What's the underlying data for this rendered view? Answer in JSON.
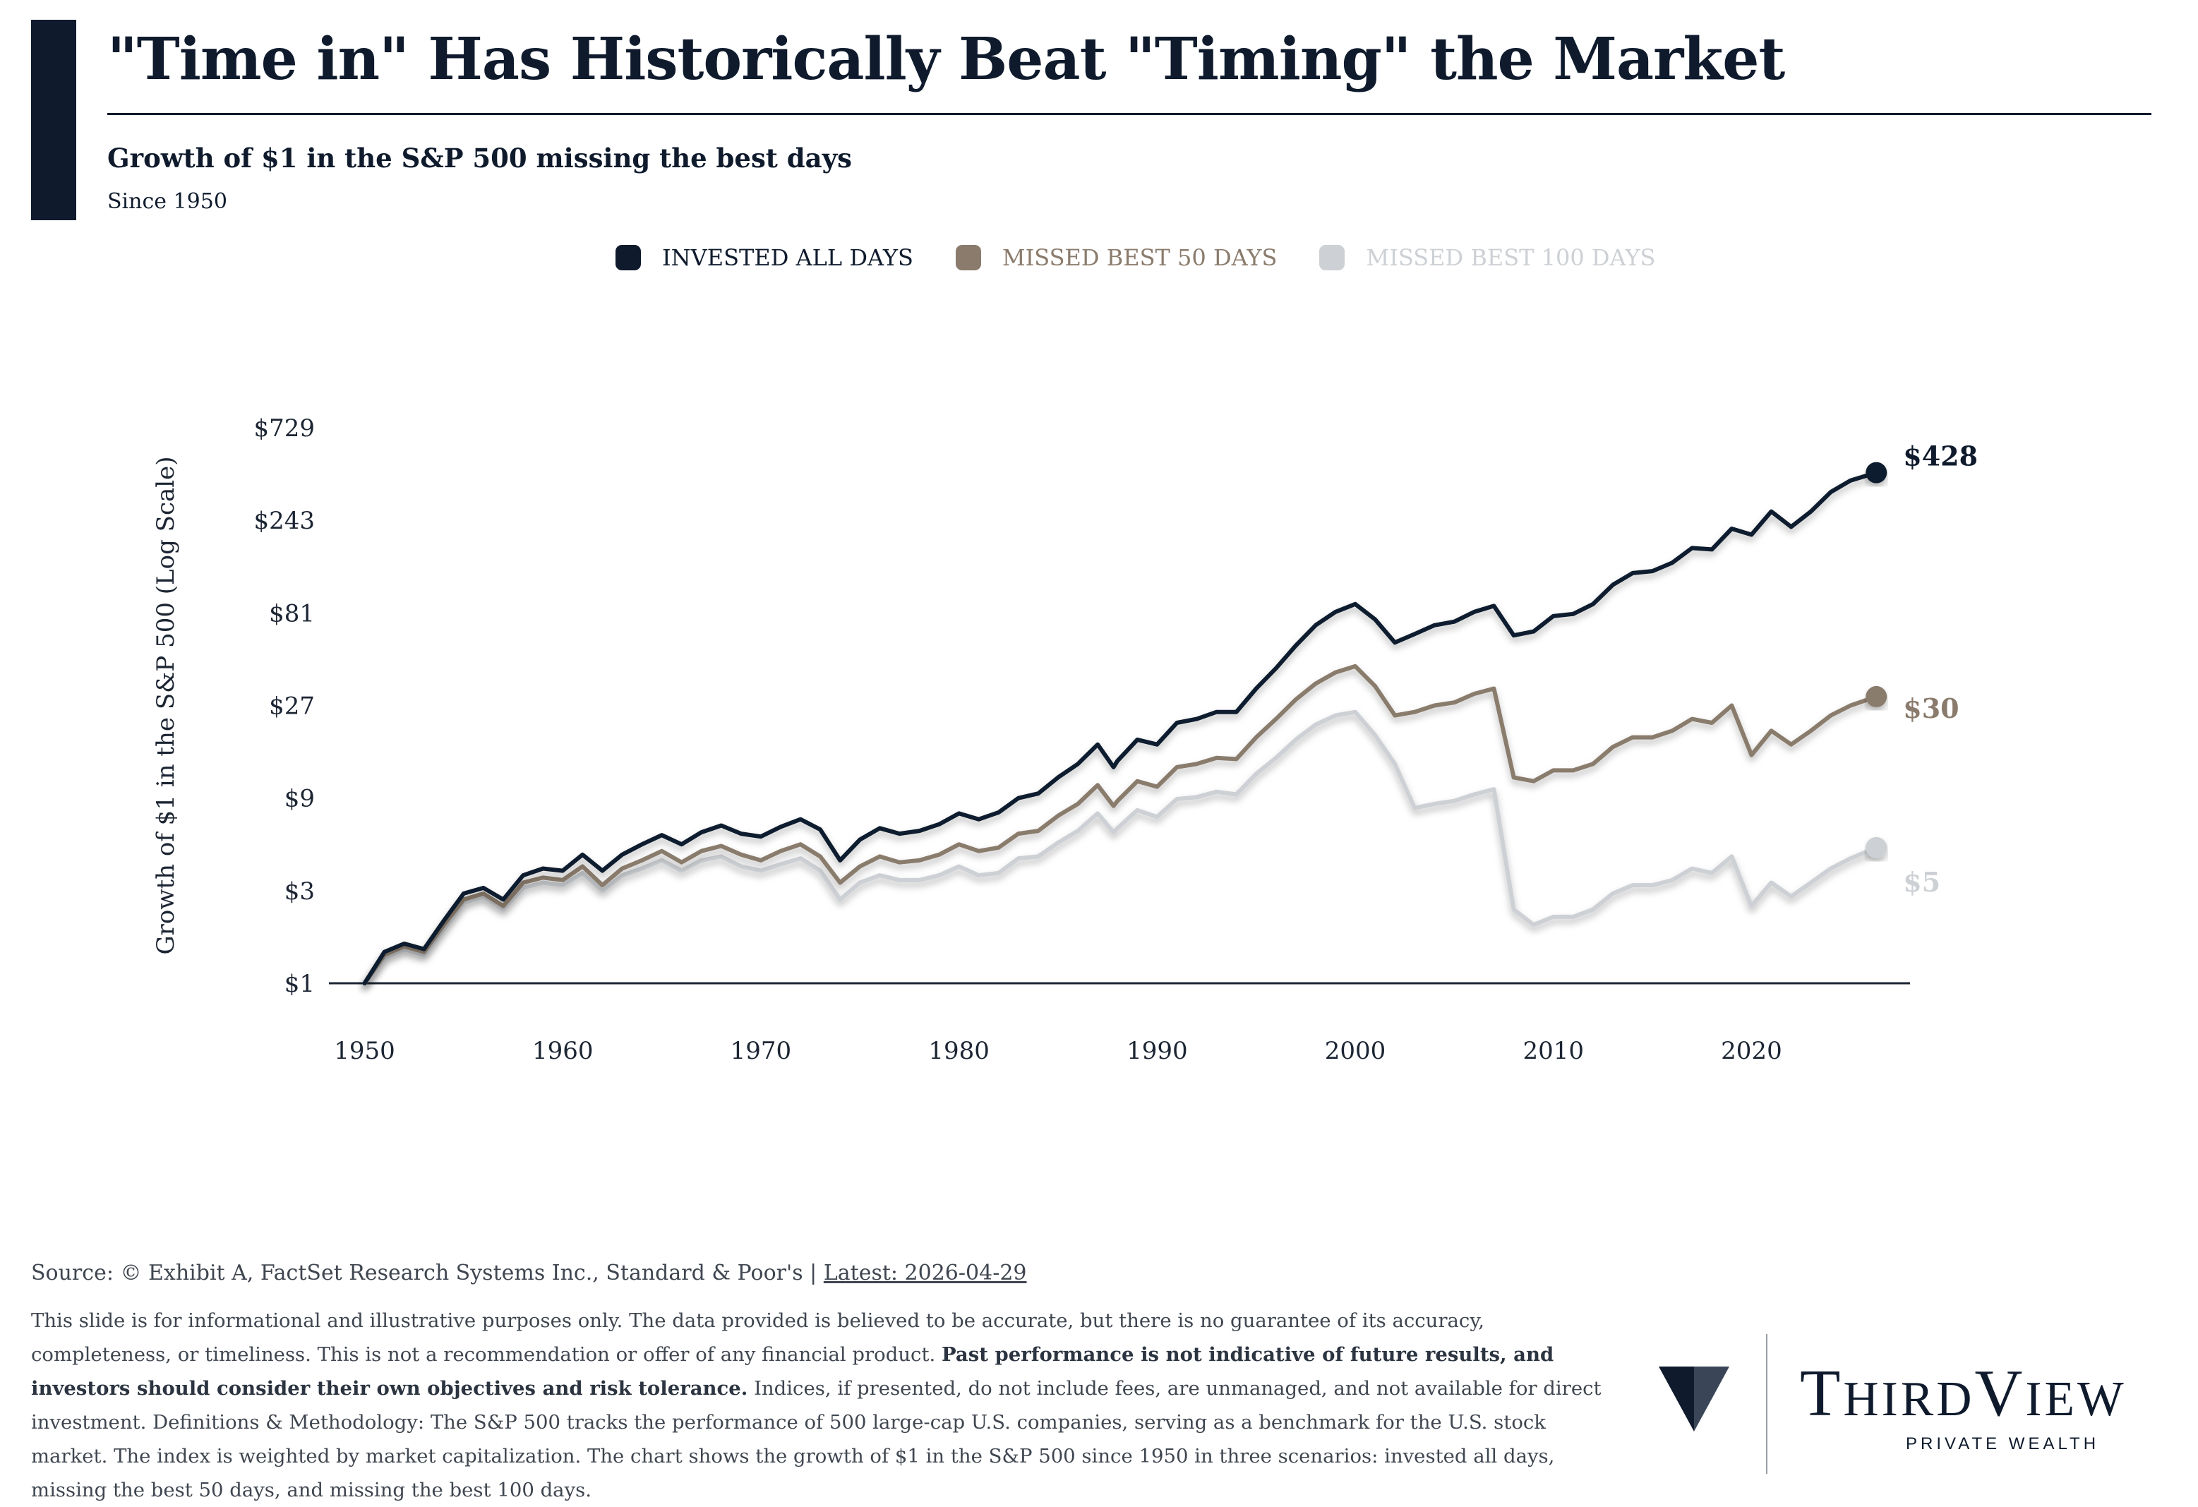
{
  "header": {
    "title": "\"Time in\" Has Historically Beat \"Timing\" the Market",
    "subtitle": "Growth of $1 in the S&P 500 missing the best days",
    "since": "Since 1950"
  },
  "colors": {
    "navy": "#0f1b2d",
    "taupe": "#8a7b6c",
    "light_gray": "#cdd0d4",
    "axis_text": "#1c2533"
  },
  "chart_data": {
    "type": "line",
    "title": "Growth of $1 in the S&P 500 missing the best days",
    "xlabel": "",
    "ylabel": "Growth of $1 in the S&P 500 (Log Scale)",
    "y_scale": "log",
    "ylim": [
      1,
      729
    ],
    "xlim": [
      1948.2,
      2028
    ],
    "y_ticks": [
      {
        "value": 1,
        "label": "$1"
      },
      {
        "value": 3,
        "label": "$3"
      },
      {
        "value": 9,
        "label": "$9"
      },
      {
        "value": 27,
        "label": "$27"
      },
      {
        "value": 81,
        "label": "$81"
      },
      {
        "value": 243,
        "label": "$243"
      },
      {
        "value": 729,
        "label": "$729"
      }
    ],
    "x_ticks": [
      {
        "value": 1950,
        "label": "1950"
      },
      {
        "value": 1960,
        "label": "1960"
      },
      {
        "value": 1970,
        "label": "1970"
      },
      {
        "value": 1980,
        "label": "1980"
      },
      {
        "value": 1990,
        "label": "1990"
      },
      {
        "value": 2000,
        "label": "2000"
      },
      {
        "value": 2010,
        "label": "2010"
      },
      {
        "value": 2020,
        "label": "2020"
      }
    ],
    "series": [
      {
        "name": "INVESTED ALL DAYS",
        "color": "#0f1b2d",
        "end_label": "$428",
        "points": [
          [
            1950,
            1
          ],
          [
            1951,
            1.45
          ],
          [
            1952,
            1.6
          ],
          [
            1953,
            1.5
          ],
          [
            1954,
            2.1
          ],
          [
            1955,
            2.9
          ],
          [
            1956,
            3.1
          ],
          [
            1957,
            2.7
          ],
          [
            1958,
            3.6
          ],
          [
            1959,
            3.9
          ],
          [
            1960,
            3.8
          ],
          [
            1961,
            4.6
          ],
          [
            1962,
            3.8
          ],
          [
            1963,
            4.6
          ],
          [
            1964,
            5.2
          ],
          [
            1965,
            5.8
          ],
          [
            1966,
            5.2
          ],
          [
            1967,
            6.0
          ],
          [
            1968,
            6.5
          ],
          [
            1969,
            5.9
          ],
          [
            1970,
            5.7
          ],
          [
            1971,
            6.4
          ],
          [
            1972,
            7.0
          ],
          [
            1973,
            6.2
          ],
          [
            1974,
            4.3
          ],
          [
            1975,
            5.5
          ],
          [
            1976,
            6.3
          ],
          [
            1977,
            5.9
          ],
          [
            1978,
            6.1
          ],
          [
            1979,
            6.6
          ],
          [
            1980,
            7.5
          ],
          [
            1981,
            7.0
          ],
          [
            1982,
            7.6
          ],
          [
            1983,
            9.0
          ],
          [
            1984,
            9.5
          ],
          [
            1985,
            11.5
          ],
          [
            1986,
            13.5
          ],
          [
            1987,
            17.0
          ],
          [
            1987.8,
            13.0
          ],
          [
            1988,
            14.0
          ],
          [
            1989,
            18.0
          ],
          [
            1990,
            17.0
          ],
          [
            1991,
            22.0
          ],
          [
            1992,
            23.0
          ],
          [
            1993,
            25.0
          ],
          [
            1994,
            25.0
          ],
          [
            1995,
            33.0
          ],
          [
            1996,
            42.0
          ],
          [
            1997,
            55.0
          ],
          [
            1998,
            70.0
          ],
          [
            1999,
            82.0
          ],
          [
            2000,
            90.0
          ],
          [
            2001,
            75.0
          ],
          [
            2002,
            57.0
          ],
          [
            2003,
            63.0
          ],
          [
            2004,
            70.0
          ],
          [
            2005,
            73.0
          ],
          [
            2006,
            82.0
          ],
          [
            2007,
            88.0
          ],
          [
            2008,
            62.0
          ],
          [
            2009,
            65.0
          ],
          [
            2010,
            78.0
          ],
          [
            2011,
            80.0
          ],
          [
            2012,
            90.0
          ],
          [
            2013,
            113.0
          ],
          [
            2014,
            130.0
          ],
          [
            2015,
            133.0
          ],
          [
            2016,
            147.0
          ],
          [
            2017,
            175.0
          ],
          [
            2018,
            172.0
          ],
          [
            2019,
            220.0
          ],
          [
            2020,
            205.0
          ],
          [
            2021,
            270.0
          ],
          [
            2022,
            225.0
          ],
          [
            2023,
            270.0
          ],
          [
            2024,
            340.0
          ],
          [
            2025,
            390.0
          ],
          [
            2026.3,
            428.0
          ]
        ]
      },
      {
        "name": "MISSED BEST 50 DAYS",
        "color": "#8a7b6c",
        "end_label": "$30",
        "points": [
          [
            1950,
            1
          ],
          [
            1951,
            1.4
          ],
          [
            1952,
            1.55
          ],
          [
            1953,
            1.45
          ],
          [
            1954,
            2.0
          ],
          [
            1955,
            2.7
          ],
          [
            1956,
            2.9
          ],
          [
            1957,
            2.5
          ],
          [
            1958,
            3.3
          ],
          [
            1959,
            3.5
          ],
          [
            1960,
            3.4
          ],
          [
            1961,
            4.0
          ],
          [
            1962,
            3.2
          ],
          [
            1963,
            3.9
          ],
          [
            1964,
            4.3
          ],
          [
            1965,
            4.8
          ],
          [
            1966,
            4.2
          ],
          [
            1967,
            4.8
          ],
          [
            1968,
            5.1
          ],
          [
            1969,
            4.6
          ],
          [
            1970,
            4.3
          ],
          [
            1971,
            4.8
          ],
          [
            1972,
            5.2
          ],
          [
            1973,
            4.5
          ],
          [
            1974,
            3.3
          ],
          [
            1975,
            4.0
          ],
          [
            1976,
            4.5
          ],
          [
            1977,
            4.2
          ],
          [
            1978,
            4.3
          ],
          [
            1979,
            4.6
          ],
          [
            1980,
            5.2
          ],
          [
            1981,
            4.8
          ],
          [
            1982,
            5.0
          ],
          [
            1983,
            5.9
          ],
          [
            1984,
            6.1
          ],
          [
            1985,
            7.3
          ],
          [
            1986,
            8.4
          ],
          [
            1987,
            10.5
          ],
          [
            1987.8,
            8.2
          ],
          [
            1988,
            8.7
          ],
          [
            1989,
            11.0
          ],
          [
            1990,
            10.3
          ],
          [
            1991,
            13.0
          ],
          [
            1992,
            13.5
          ],
          [
            1993,
            14.5
          ],
          [
            1994,
            14.3
          ],
          [
            1995,
            18.5
          ],
          [
            1996,
            23.0
          ],
          [
            1997,
            29.0
          ],
          [
            1998,
            35.0
          ],
          [
            1999,
            40.0
          ],
          [
            2000,
            43.0
          ],
          [
            2001,
            34.0
          ],
          [
            2002,
            24.0
          ],
          [
            2003,
            25.0
          ],
          [
            2004,
            27.0
          ],
          [
            2005,
            28.0
          ],
          [
            2006,
            31.0
          ],
          [
            2007,
            33.0
          ],
          [
            2008,
            11.5
          ],
          [
            2009,
            11.0
          ],
          [
            2010,
            12.5
          ],
          [
            2011,
            12.5
          ],
          [
            2012,
            13.5
          ],
          [
            2013,
            16.5
          ],
          [
            2014,
            18.5
          ],
          [
            2015,
            18.5
          ],
          [
            2016,
            20.0
          ],
          [
            2017,
            23.0
          ],
          [
            2018,
            22.0
          ],
          [
            2019,
            27.0
          ],
          [
            2020,
            15.0
          ],
          [
            2021,
            20.0
          ],
          [
            2022,
            17.0
          ],
          [
            2023,
            20.0
          ],
          [
            2024,
            24.0
          ],
          [
            2025,
            27.0
          ],
          [
            2026.3,
            30.0
          ]
        ]
      },
      {
        "name": "MISSED BEST 100 DAYS",
        "color": "#cdd0d4",
        "end_label": "$5",
        "points": [
          [
            1950,
            1
          ],
          [
            1951,
            1.35
          ],
          [
            1952,
            1.5
          ],
          [
            1953,
            1.4
          ],
          [
            1954,
            1.9
          ],
          [
            1955,
            2.6
          ],
          [
            1956,
            2.8
          ],
          [
            1957,
            2.4
          ],
          [
            1958,
            3.1
          ],
          [
            1959,
            3.3
          ],
          [
            1960,
            3.2
          ],
          [
            1961,
            3.7
          ],
          [
            1962,
            3.0
          ],
          [
            1963,
            3.6
          ],
          [
            1964,
            3.9
          ],
          [
            1965,
            4.3
          ],
          [
            1966,
            3.8
          ],
          [
            1967,
            4.3
          ],
          [
            1968,
            4.5
          ],
          [
            1969,
            4.0
          ],
          [
            1970,
            3.8
          ],
          [
            1971,
            4.1
          ],
          [
            1972,
            4.4
          ],
          [
            1973,
            3.8
          ],
          [
            1974,
            2.7
          ],
          [
            1975,
            3.3
          ],
          [
            1976,
            3.6
          ],
          [
            1977,
            3.4
          ],
          [
            1978,
            3.4
          ],
          [
            1979,
            3.6
          ],
          [
            1980,
            4.0
          ],
          [
            1981,
            3.6
          ],
          [
            1982,
            3.7
          ],
          [
            1983,
            4.4
          ],
          [
            1984,
            4.5
          ],
          [
            1985,
            5.3
          ],
          [
            1986,
            6.1
          ],
          [
            1987,
            7.5
          ],
          [
            1987.8,
            6.0
          ],
          [
            1988,
            6.3
          ],
          [
            1989,
            7.8
          ],
          [
            1990,
            7.2
          ],
          [
            1991,
            8.9
          ],
          [
            1992,
            9.1
          ],
          [
            1993,
            9.7
          ],
          [
            1994,
            9.4
          ],
          [
            1995,
            12.0
          ],
          [
            1996,
            14.5
          ],
          [
            1997,
            18.0
          ],
          [
            1998,
            21.5
          ],
          [
            1999,
            24.0
          ],
          [
            2000,
            25.0
          ],
          [
            2001,
            19.0
          ],
          [
            2002,
            13.5
          ],
          [
            2003,
            8.0
          ],
          [
            2004,
            8.4
          ],
          [
            2005,
            8.7
          ],
          [
            2006,
            9.4
          ],
          [
            2007,
            10.0
          ],
          [
            2008,
            2.4
          ],
          [
            2009,
            2.0
          ],
          [
            2010,
            2.2
          ],
          [
            2011,
            2.2
          ],
          [
            2012,
            2.4
          ],
          [
            2013,
            2.9
          ],
          [
            2014,
            3.2
          ],
          [
            2015,
            3.2
          ],
          [
            2016,
            3.4
          ],
          [
            2017,
            3.9
          ],
          [
            2018,
            3.7
          ],
          [
            2019,
            4.5
          ],
          [
            2020,
            2.5
          ],
          [
            2021,
            3.3
          ],
          [
            2022,
            2.8
          ],
          [
            2023,
            3.3
          ],
          [
            2024,
            3.9
          ],
          [
            2025,
            4.4
          ],
          [
            2026.3,
            5.0
          ]
        ]
      }
    ]
  },
  "footer": {
    "source_prefix": "Source: © Exhibit A, FactSet Research Systems Inc., Standard & Poor's | ",
    "latest": "Latest: 2026-04-29",
    "disclaimer_1": "This slide is for informational and illustrative purposes only. The data provided is believed to be accurate, but there is no guarantee of its accuracy, completeness, or timeliness. This is not a recommendation or offer of any financial product. ",
    "disclaimer_bold": "Past performance is not indicative of future results, and investors should consider their own objectives and risk tolerance.",
    "disclaimer_2": " Indices, if presented, do not include fees, are unmanaged, and not available for direct investment. Definitions & Methodology: The S&P 500 tracks the performance of 500 large-cap U.S. companies, serving as a benchmark for the U.S. stock market. The index is weighted by market capitalization. The chart shows the growth of $1 in the S&P 500 since 1950 in three scenarios: invested all days, missing the best 50 days, and missing the best 100 days."
  },
  "brand": {
    "name": "ThirdView",
    "tagline": "PRIVATE WEALTH",
    "logo_icon": "v-chevron-icon"
  }
}
